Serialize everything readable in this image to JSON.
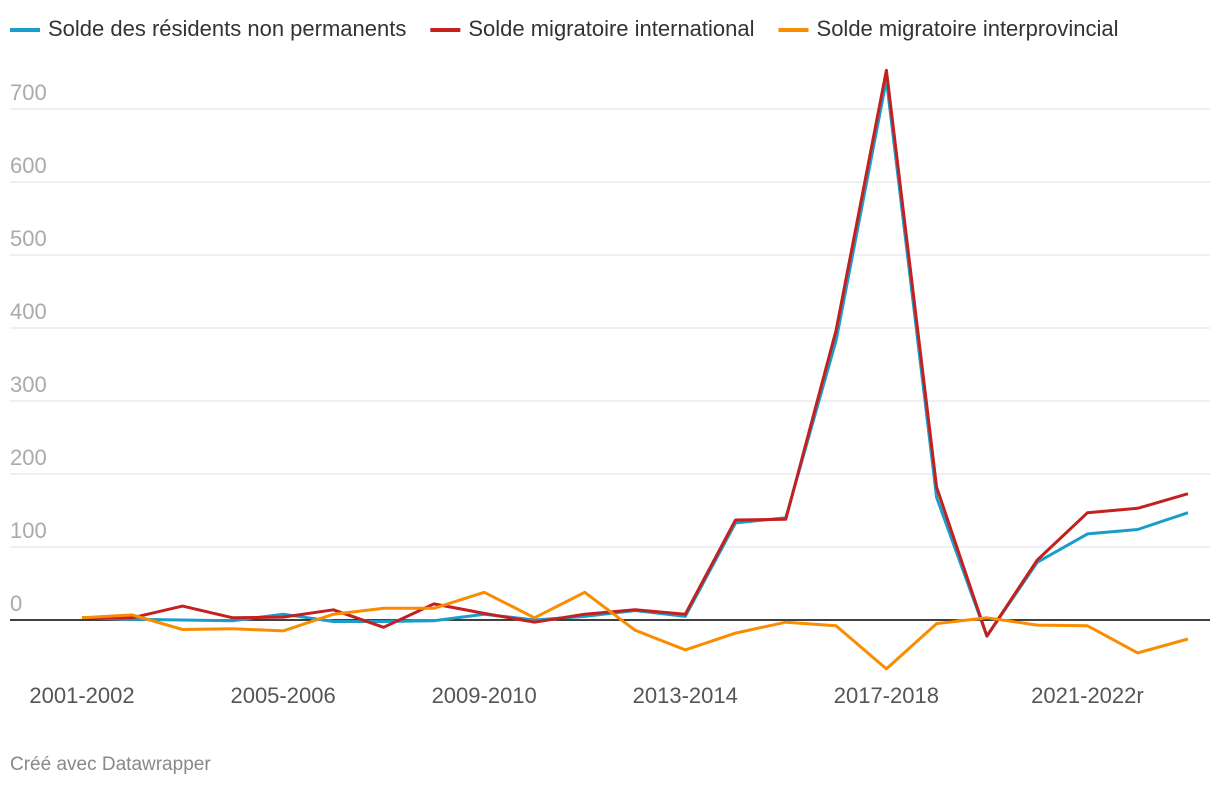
{
  "chart_data": {
    "type": "line",
    "categories": [
      "2001-2002",
      null,
      null,
      null,
      "2005-2006",
      null,
      null,
      null,
      "2009-2010",
      null,
      null,
      null,
      "2013-2014",
      null,
      null,
      null,
      "2017-2018",
      null,
      null,
      null,
      "2021-2022r",
      null,
      null
    ],
    "series": [
      {
        "name": "Solde des résidents non permanents",
        "color": "#1a9ec9",
        "values": [
          3,
          1,
          0,
          -1,
          8,
          -2,
          -2,
          -1,
          8,
          0,
          5,
          13,
          5,
          133,
          140,
          383,
          740,
          168,
          -22,
          79,
          118,
          124,
          147
        ]
      },
      {
        "name": "Solde migratoire international",
        "color": "#c4201f",
        "values": [
          3,
          3,
          19,
          3,
          4,
          14,
          -10,
          22,
          9,
          -3,
          8,
          14,
          8,
          137,
          138,
          397,
          753,
          182,
          -22,
          82,
          147,
          153,
          173
        ]
      },
      {
        "name": "Solde migratoire interprovincial",
        "color": "#f98c00",
        "values": [
          3,
          7,
          -13,
          -12,
          -15,
          8,
          16,
          16,
          38,
          3,
          38,
          -14,
          -41,
          -18,
          -3,
          -8,
          -67,
          -5,
          3,
          -7,
          -8,
          -45,
          -26
        ]
      }
    ],
    "ylim": [
      -80,
      760
    ],
    "yticks": [
      0,
      100,
      200,
      300,
      400,
      500,
      600,
      700
    ],
    "grid": true,
    "legend": "top",
    "source": "Créé avec Datawrapper"
  }
}
